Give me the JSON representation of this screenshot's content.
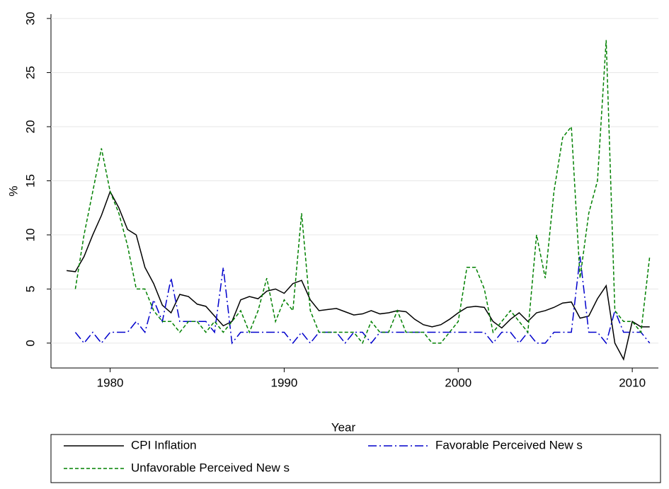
{
  "chart_data": {
    "type": "line",
    "x_label": "Year",
    "y_label": "%",
    "x": [
      1977.5,
      1978,
      1978.5,
      1979,
      1979.5,
      1980,
      1980.5,
      1981,
      1981.5,
      1982,
      1982.5,
      1983,
      1983.5,
      1984,
      1984.5,
      1985,
      1985.5,
      1986,
      1986.5,
      1987,
      1987.5,
      1988,
      1988.5,
      1989,
      1989.5,
      1990,
      1990.5,
      1991,
      1991.5,
      1992,
      1992.5,
      1993,
      1993.5,
      1994,
      1994.5,
      1995,
      1995.5,
      1996,
      1996.5,
      1997,
      1997.5,
      1998,
      1998.5,
      1999,
      1999.5,
      2000,
      2000.5,
      2001,
      2001.5,
      2002,
      2002.5,
      2003,
      2003.5,
      2004,
      2004.5,
      2005,
      2005.5,
      2006,
      2006.5,
      2007,
      2007.5,
      2008,
      2008.5,
      2009,
      2009.5,
      2010,
      2010.5,
      2011
    ],
    "series": [
      {
        "name": "CPI Inflation",
        "color": "#000000",
        "dash": "solid",
        "values": [
          6.7,
          6.6,
          8,
          10,
          11.8,
          14,
          12.5,
          10.5,
          10,
          7,
          5.5,
          3.5,
          2.8,
          4.5,
          4.3,
          3.6,
          3.4,
          2.5,
          1.6,
          2,
          4,
          4.3,
          4.1,
          4.8,
          5,
          4.6,
          5.5,
          5.8,
          4,
          3,
          3.1,
          3.2,
          2.9,
          2.6,
          2.7,
          3,
          2.7,
          2.8,
          3,
          2.9,
          2.2,
          1.7,
          1.5,
          1.7,
          2.2,
          2.8,
          3.3,
          3.4,
          3.3,
          2,
          1.4,
          2.2,
          2.8,
          2,
          2.8,
          3,
          3.3,
          3.7,
          3.8,
          2.3,
          2.5,
          4.1,
          5.3,
          0,
          -1.5,
          2,
          1.5,
          1.5
        ]
      },
      {
        "name": "Favorable Perceived New s",
        "color": "#0000cc",
        "dash": "dashdot",
        "values": [
          null,
          1,
          0,
          1,
          0,
          1,
          1,
          1,
          2,
          1,
          4,
          2,
          6,
          2,
          2,
          2,
          2,
          1,
          7,
          0,
          1,
          1,
          1,
          1,
          1,
          1,
          0,
          1,
          0,
          1,
          1,
          1,
          0,
          1,
          1,
          0,
          1,
          1,
          1,
          1,
          1,
          1,
          1,
          1,
          1,
          1,
          1,
          1,
          1,
          0,
          1,
          1,
          0,
          1,
          0,
          0,
          1,
          1,
          1,
          8,
          1,
          1,
          0,
          3,
          1,
          1,
          1,
          0
        ]
      },
      {
        "name": "Unfavorable Perceived New s",
        "color": "#008000",
        "dash": "dashed",
        "values": [
          null,
          5,
          10,
          14,
          18,
          14,
          12,
          9,
          5,
          5,
          3,
          2,
          2,
          1,
          2,
          2,
          1,
          2,
          1,
          2,
          3,
          1,
          3,
          6,
          2,
          4,
          3,
          12,
          3,
          1,
          1,
          1,
          1,
          1,
          0,
          2,
          1,
          1,
          3,
          1,
          1,
          1,
          0,
          0,
          1,
          2,
          7,
          7,
          5,
          1,
          2,
          3,
          2,
          1,
          10,
          6,
          14,
          19,
          20,
          6,
          12,
          15,
          28,
          3,
          2,
          2,
          1,
          8
        ]
      }
    ],
    "xlim": [
      1976.6,
      2011.5
    ],
    "xticks": [
      1980,
      1990,
      2000,
      2010
    ],
    "ylim": [
      -2.3,
      30.4
    ],
    "yticks": [
      0,
      5,
      10,
      15,
      20,
      25,
      30
    ],
    "grid": true
  }
}
